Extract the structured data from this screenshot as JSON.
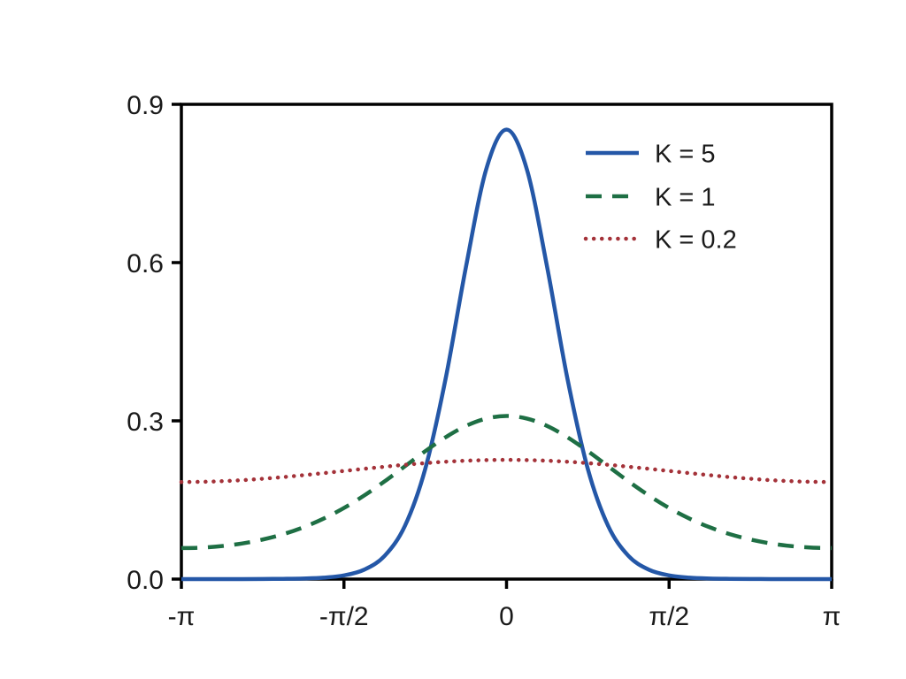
{
  "chart_data": {
    "type": "line",
    "title": "",
    "xlabel": "",
    "ylabel": "",
    "grid": false,
    "legend_position": "upper right",
    "xlim_pi": [
      -1,
      1
    ],
    "ylim": [
      0,
      0.9
    ],
    "x_pi": [
      -1,
      -0.9375,
      -0.875,
      -0.8125,
      -0.75,
      -0.6875,
      -0.625,
      -0.5625,
      -0.5,
      -0.4375,
      -0.375,
      -0.3125,
      -0.25,
      -0.1875,
      -0.125,
      -0.0625,
      0,
      0.0625,
      0.125,
      0.1875,
      0.25,
      0.3125,
      0.375,
      0.4375,
      0.5,
      0.5625,
      0.625,
      0.6875,
      0.75,
      0.8125,
      0.875,
      0.9375,
      1
    ],
    "series": [
      {
        "name": "K = 5",
        "style": "solid",
        "color": "#2457a7",
        "values": [
          0,
          0,
          0,
          0.0001,
          0.0002,
          0.0005,
          0.0011,
          0.0027,
          0.007,
          0.0179,
          0.044,
          0.1009,
          0.2089,
          0.3794,
          0.5911,
          0.7769,
          0.852,
          0.7769,
          0.5911,
          0.3794,
          0.2089,
          0.1009,
          0.044,
          0.0179,
          0.007,
          0.0027,
          0.0011,
          0.0005,
          0.0002,
          0.0001,
          0,
          0,
          0
        ]
      },
      {
        "name": "K = 1",
        "style": "dashed",
        "color": "#1e6f44",
        "values": [
          0.0588,
          0.0597,
          0.0626,
          0.0676,
          0.075,
          0.085,
          0.0982,
          0.1147,
          0.1348,
          0.1586,
          0.1853,
          0.2139,
          0.2425,
          0.2688,
          0.2903,
          0.3043,
          0.3092,
          0.3043,
          0.2903,
          0.2688,
          0.2425,
          0.2139,
          0.1853,
          0.1586,
          0.1348,
          0.1147,
          0.0982,
          0.085,
          0.075,
          0.0676,
          0.0626,
          0.0597,
          0.0588
        ]
      },
      {
        "name": "K = 0.2",
        "style": "dotted",
        "color": "#a43239",
        "values": [
          0.184,
          0.1844,
          0.1856,
          0.1875,
          0.1902,
          0.1933,
          0.197,
          0.2009,
          0.205,
          0.2091,
          0.213,
          0.2167,
          0.2198,
          0.2225,
          0.2244,
          0.2256,
          0.226,
          0.2256,
          0.2244,
          0.2225,
          0.2198,
          0.2167,
          0.213,
          0.2091,
          0.205,
          0.2009,
          0.197,
          0.1933,
          0.1902,
          0.1875,
          0.1856,
          0.1844,
          0.184
        ]
      }
    ],
    "xticks": [
      {
        "pos_pi": -1,
        "label": "-π"
      },
      {
        "pos_pi": -0.5,
        "label": "-π/2"
      },
      {
        "pos_pi": 0,
        "label": "0"
      },
      {
        "pos_pi": 0.5,
        "label": "π/2"
      },
      {
        "pos_pi": 1,
        "label": "π"
      }
    ],
    "yticks": [
      {
        "pos": 0.0,
        "label": "0.0"
      },
      {
        "pos": 0.3,
        "label": "0.3"
      },
      {
        "pos": 0.6,
        "label": "0.6"
      },
      {
        "pos": 0.9,
        "label": "0.9"
      }
    ]
  },
  "colors": {
    "background": "#ffffff",
    "axis": "#000000",
    "text": "#1a1a1a",
    "series_k5": "#2457a7",
    "series_k1": "#1e6f44",
    "series_k02": "#a43239"
  }
}
